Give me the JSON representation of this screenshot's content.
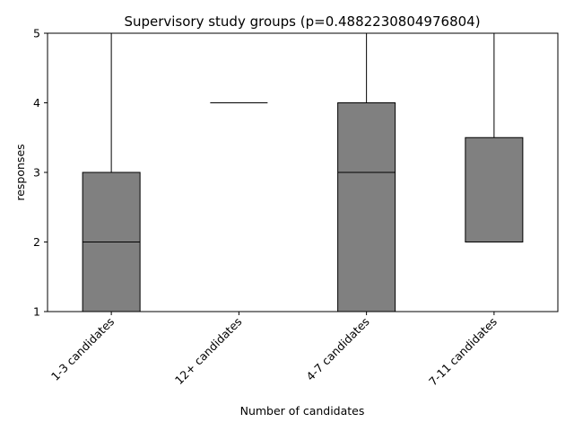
{
  "chart_data": {
    "type": "box",
    "title": "Supervisory study groups (p=0.4882230804976804)",
    "xlabel": "Number of candidates",
    "ylabel": "responses",
    "ylim": [
      1,
      5
    ],
    "yticks": [
      "1",
      "2",
      "3",
      "4",
      "5"
    ],
    "grid": false,
    "categories": [
      "1-3 candidates",
      "12+ candidates",
      "4-7 candidates",
      "7-11 candidates"
    ],
    "boxes": [
      {
        "whisker_low": 1,
        "q1": 1,
        "median": 2,
        "q3": 3,
        "whisker_high": 5
      },
      {
        "whisker_low": 4,
        "q1": 4,
        "median": 4,
        "q3": 4,
        "whisker_high": 4
      },
      {
        "whisker_low": 1,
        "q1": 1,
        "median": 3,
        "q3": 4,
        "whisker_high": 5
      },
      {
        "whisker_low": 2,
        "q1": 2,
        "median": 2,
        "q3": 3.5,
        "whisker_high": 5
      }
    ],
    "box_color": "#808080",
    "line_color": "#000000"
  }
}
